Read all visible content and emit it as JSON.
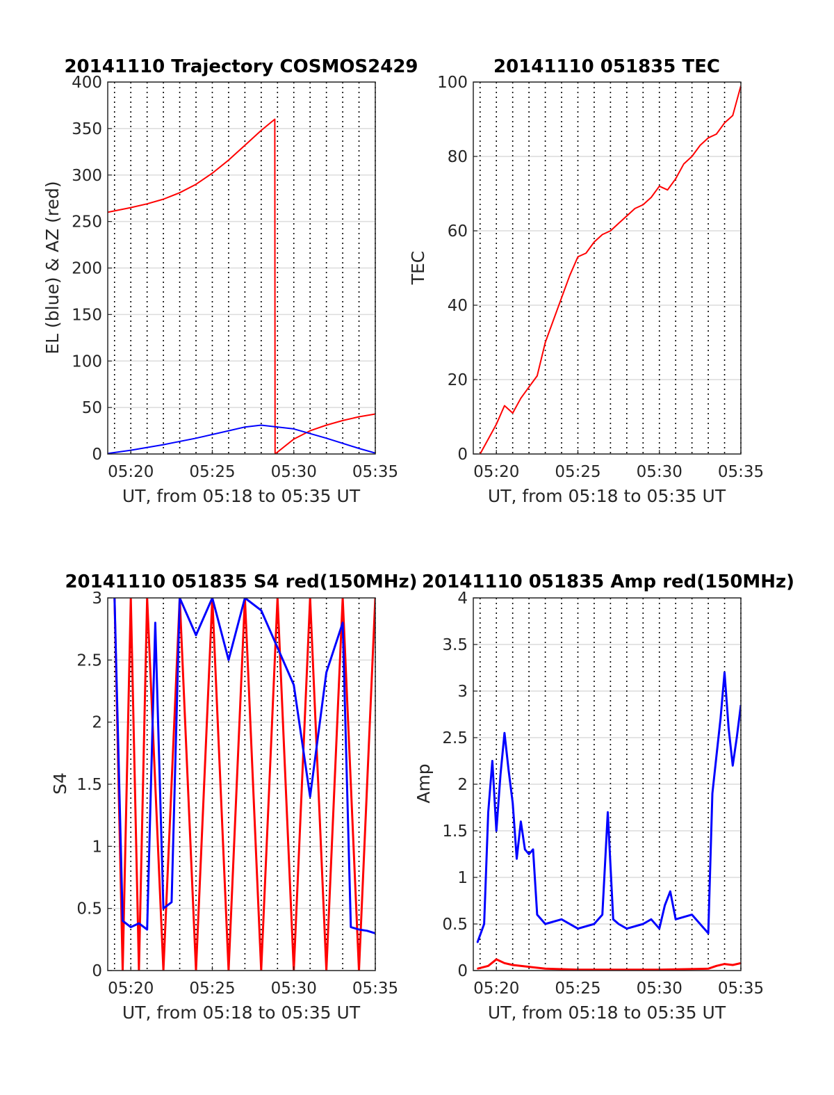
{
  "figure": {
    "time_tick_labels": [
      "05:20",
      "05:25",
      "05:30",
      "05:35"
    ],
    "time_tick_values": [
      "05:20",
      "05:25",
      "05:30",
      "05:35"
    ],
    "time_range": [
      "05:18:35",
      "05:35:00"
    ],
    "vertical_gridlines_every_minutes": 1
  },
  "chart_data": [
    {
      "id": "trajectory",
      "type": "line",
      "title": "20141110 Trajectory COSMOS2429",
      "xlabel": "UT, from 05:18 to 05:35 UT",
      "ylabel": "EL (blue) & AZ (red)",
      "xlim": [
        "05:18:35",
        "05:35:00"
      ],
      "ylim": [
        0,
        400
      ],
      "yticks": [
        "0",
        "50",
        "100",
        "150",
        "200",
        "250",
        "300",
        "350",
        "400"
      ],
      "grid": true,
      "series": [
        {
          "color": "#ff0000",
          "x": [
            "05:18:35",
            "05:20:00",
            "05:21:00",
            "05:22:00",
            "05:23:00",
            "05:24:00",
            "05:25:00",
            "05:26:00",
            "05:27:00",
            "05:28:00",
            "05:28:50",
            "05:28:51",
            "05:30:00",
            "05:31:00",
            "05:32:00",
            "05:33:00",
            "05:34:00",
            "05:35:00"
          ],
          "y": [
            260,
            265,
            269,
            274,
            281,
            290,
            302,
            316,
            332,
            348,
            360,
            0,
            16,
            25,
            31,
            36,
            40,
            43
          ]
        },
        {
          "color": "#0000ff",
          "x": [
            "05:18:35",
            "05:20:00",
            "05:22:00",
            "05:24:00",
            "05:26:00",
            "05:27:00",
            "05:28:00",
            "05:30:00",
            "05:32:00",
            "05:34:00",
            "05:35:00"
          ],
          "y": [
            0.5,
            4,
            10,
            17,
            25,
            29,
            31,
            27,
            17,
            6,
            1
          ]
        }
      ]
    },
    {
      "id": "tec",
      "type": "line",
      "title": "20141110 051835 TEC",
      "xlabel": "UT, from 05:18 to 05:35 UT",
      "ylabel": "TEC",
      "xlim": [
        "05:18:35",
        "05:35:00"
      ],
      "ylim": [
        0,
        100
      ],
      "yticks": [
        "0",
        "20",
        "40",
        "60",
        "80",
        "100"
      ],
      "grid": true,
      "series": [
        {
          "color": "#ff0000",
          "x": [
            "05:19:00",
            "05:19:30",
            "05:20:00",
            "05:20:30",
            "05:21:00",
            "05:21:30",
            "05:22:00",
            "05:22:30",
            "05:23:00",
            "05:23:30",
            "05:24:00",
            "05:24:30",
            "05:25:00",
            "05:25:30",
            "05:26:00",
            "05:26:30",
            "05:27:00",
            "05:27:30",
            "05:28:00",
            "05:28:30",
            "05:29:00",
            "05:29:30",
            "05:30:00",
            "05:30:30",
            "05:31:00",
            "05:31:30",
            "05:32:00",
            "05:32:30",
            "05:33:00",
            "05:33:30",
            "05:34:00",
            "05:34:30",
            "05:35:00"
          ],
          "y": [
            0,
            4,
            8,
            13,
            11,
            15,
            18,
            21,
            30,
            36,
            42,
            48,
            53,
            54,
            57,
            59,
            60,
            62,
            64,
            66,
            67,
            69,
            72,
            71,
            74,
            78,
            80,
            83,
            85,
            86,
            89,
            91,
            99
          ]
        }
      ]
    },
    {
      "id": "s4",
      "type": "line",
      "title": "20141110 051835 S4 red(150MHz)",
      "xlabel": "UT, from 05:18 to 05:35 UT",
      "ylabel": "S4",
      "xlim": [
        "05:18:35",
        "05:35:00"
      ],
      "ylim": [
        0,
        3
      ],
      "yticks": [
        "0",
        "0.5",
        "1",
        "1.5",
        "2",
        "2.5",
        "3"
      ],
      "grid": true,
      "series": [
        {
          "color": "#ff0000",
          "x": [
            "05:19:00",
            "05:19:30",
            "05:20:00",
            "05:20:30",
            "05:21:00",
            "05:22:00",
            "05:23:00",
            "05:24:00",
            "05:25:00",
            "05:26:00",
            "05:27:00",
            "05:28:00",
            "05:29:00",
            "05:30:00",
            "05:31:00",
            "05:32:00",
            "05:33:00",
            "05:34:00",
            "05:35:00"
          ],
          "y": [
            3,
            0,
            3,
            0,
            3,
            0,
            3,
            0,
            3,
            0,
            3,
            0,
            3,
            0,
            3,
            0,
            3,
            0,
            3
          ]
        },
        {
          "color": "#0000ff",
          "x": [
            "05:19:00",
            "05:19:30",
            "05:20:00",
            "05:20:30",
            "05:21:00",
            "05:21:30",
            "05:22:00",
            "05:22:30",
            "05:23:00",
            "05:24:00",
            "05:25:00",
            "05:26:00",
            "05:27:00",
            "05:28:00",
            "05:29:00",
            "05:30:00",
            "05:31:00",
            "05:32:00",
            "05:33:00",
            "05:33:30",
            "05:34:00",
            "05:34:30",
            "05:35:00"
          ],
          "y": [
            3,
            0.4,
            0.35,
            0.38,
            0.33,
            2.8,
            0.5,
            0.55,
            3,
            2.7,
            3,
            2.5,
            3,
            2.9,
            2.6,
            2.3,
            1.4,
            2.4,
            2.8,
            0.35,
            0.33,
            0.32,
            0.3
          ]
        }
      ]
    },
    {
      "id": "amp",
      "type": "line",
      "title": "20141110 051835 Amp red(150MHz)",
      "xlabel": "UT, from 05:18 to 05:35 UT",
      "ylabel": "Amp",
      "xlim": [
        "05:18:35",
        "05:35:00"
      ],
      "ylim": [
        0,
        4
      ],
      "yticks": [
        "0",
        "0.5",
        "1",
        "1.5",
        "2",
        "2.5",
        "3",
        "3.5",
        "4"
      ],
      "grid": true,
      "series": [
        {
          "color": "#0000ff",
          "x": [
            "05:18:50",
            "05:19:15",
            "05:19:30",
            "05:19:45",
            "05:20:00",
            "05:20:15",
            "05:20:30",
            "05:20:45",
            "05:21:00",
            "05:21:15",
            "05:21:30",
            "05:21:45",
            "05:22:00",
            "05:22:15",
            "05:22:30",
            "05:23:00",
            "05:24:00",
            "05:25:00",
            "05:26:00",
            "05:26:30",
            "05:26:50",
            "05:27:10",
            "05:27:30",
            "05:28:00",
            "05:29:00",
            "05:29:30",
            "05:30:00",
            "05:30:20",
            "05:30:40",
            "05:31:00",
            "05:32:00",
            "05:33:00",
            "05:33:15",
            "05:33:30",
            "05:33:45",
            "05:34:00",
            "05:34:15",
            "05:34:30",
            "05:34:45",
            "05:35:00"
          ],
          "y": [
            0.3,
            0.5,
            1.7,
            2.25,
            1.5,
            2.1,
            2.55,
            2.15,
            1.8,
            1.2,
            1.6,
            1.3,
            1.25,
            1.3,
            0.6,
            0.5,
            0.55,
            0.45,
            0.5,
            0.6,
            1.7,
            0.55,
            0.5,
            0.45,
            0.5,
            0.55,
            0.45,
            0.7,
            0.85,
            0.55,
            0.6,
            0.4,
            1.9,
            2.3,
            2.7,
            3.2,
            2.6,
            2.2,
            2.5,
            2.85
          ]
        },
        {
          "color": "#ff0000",
          "x": [
            "05:18:50",
            "05:19:30",
            "05:20:00",
            "05:20:30",
            "05:21:00",
            "05:22:00",
            "05:23:00",
            "05:25:00",
            "05:30:00",
            "05:33:00",
            "05:33:30",
            "05:34:00",
            "05:34:30",
            "05:35:00"
          ],
          "y": [
            0.02,
            0.05,
            0.12,
            0.08,
            0.06,
            0.04,
            0.02,
            0.01,
            0.01,
            0.02,
            0.05,
            0.07,
            0.06,
            0.08
          ]
        }
      ]
    }
  ]
}
